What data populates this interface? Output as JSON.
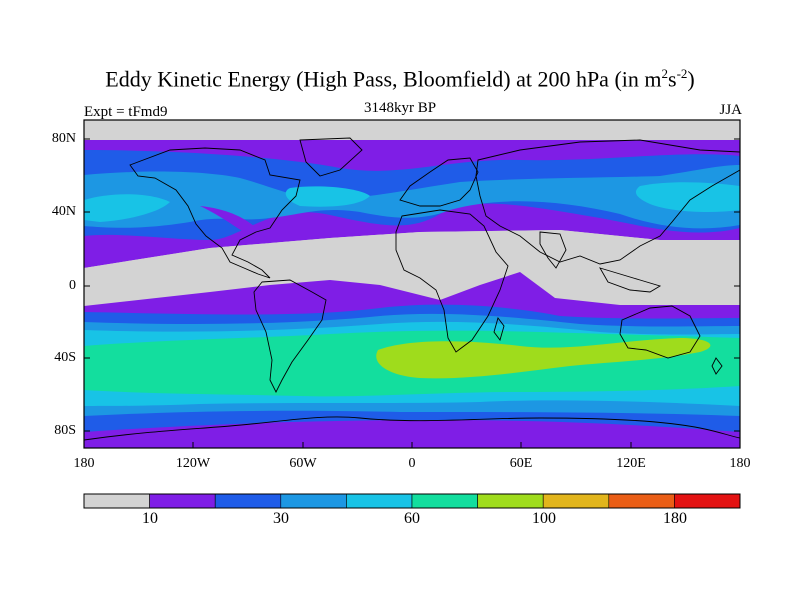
{
  "title": {
    "main": "Eddy Kinetic Energy (High Pass, Bloomfield) at 200 hPa (in m",
    "sup1": "2",
    "mid": "s",
    "sup2": "-2",
    "end": ")"
  },
  "left_label": "Expt = tFmd9",
  "center_label": "3148kyr BP",
  "right_label": "JJA",
  "y_ticks": [
    "80N",
    "40N",
    "0",
    "40S",
    "80S"
  ],
  "x_ticks": [
    "180",
    "120W",
    "60W",
    "0",
    "60E",
    "120E",
    "180"
  ],
  "colorbar": {
    "colors": [
      "#d3d3d3",
      "#7f1ee6",
      "#1f5ce8",
      "#1d97e3",
      "#18c3e6",
      "#13de9e",
      "#9fdc1c",
      "#e2b51c",
      "#ea5e16",
      "#e31212"
    ],
    "labels": [
      "10",
      "30",
      "60",
      "100",
      "180"
    ]
  },
  "chart_data": {
    "type": "heatmap",
    "projection": "cylindrical equidistant",
    "variable": "Eddy Kinetic Energy (High Pass, Bloomfield)",
    "level": "200 hPa",
    "units": "m2 s-2",
    "season": "JJA",
    "period": "3148kyr BP",
    "experiment": "tFmd9",
    "lon_range": [
      -180,
      180
    ],
    "lat_range": [
      -90,
      90
    ],
    "legend": "bottom",
    "color_levels": [
      "<10",
      "10-20",
      "20-30",
      "30-45",
      "45-60",
      "60-80",
      "80-100",
      "100-140",
      "140-180",
      ">180"
    ]
  }
}
